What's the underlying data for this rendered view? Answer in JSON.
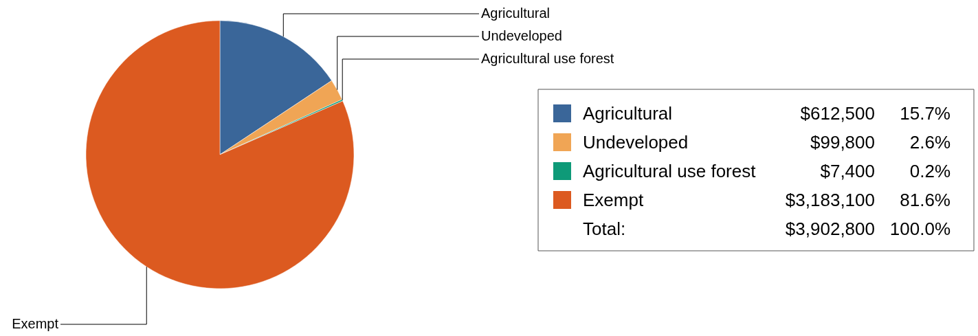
{
  "chart_data": {
    "type": "pie",
    "categories": [
      "Agricultural",
      "Undeveloped",
      "Agricultural use forest",
      "Exempt"
    ],
    "values": [
      612500,
      99800,
      7400,
      3183100
    ],
    "colors": [
      "#3a6699",
      "#f0a555",
      "#0e9a78",
      "#dc5a20"
    ],
    "value_labels": [
      "$612,500",
      "$99,800",
      "$7,400",
      "$3,183,100"
    ],
    "annotations": [
      "15.7%",
      "2.6%",
      "0.2%",
      "81.6%",
      "Total:",
      "$3,902,800",
      "100.0%"
    ],
    "legend": "right"
  }
}
